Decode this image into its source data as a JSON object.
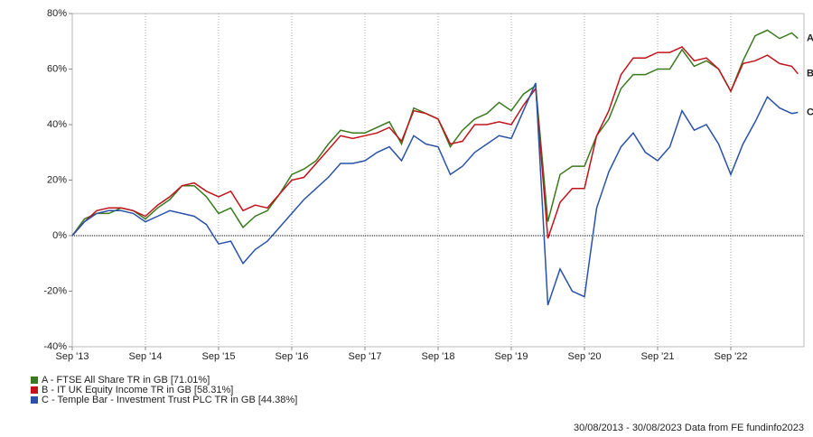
{
  "chart_data": {
    "type": "line",
    "x": [
      "2013-09",
      "2013-11",
      "2014-01",
      "2014-03",
      "2014-05",
      "2014-07",
      "2014-09",
      "2014-11",
      "2015-01",
      "2015-03",
      "2015-05",
      "2015-07",
      "2015-09",
      "2015-11",
      "2016-01",
      "2016-03",
      "2016-05",
      "2016-07",
      "2016-09",
      "2016-11",
      "2017-01",
      "2017-03",
      "2017-05",
      "2017-07",
      "2017-09",
      "2017-11",
      "2018-01",
      "2018-03",
      "2018-05",
      "2018-07",
      "2018-09",
      "2018-11",
      "2019-01",
      "2019-03",
      "2019-05",
      "2019-07",
      "2019-09",
      "2019-11",
      "2020-01",
      "2020-03",
      "2020-05",
      "2020-07",
      "2020-09",
      "2020-11",
      "2021-01",
      "2021-03",
      "2021-05",
      "2021-07",
      "2021-09",
      "2021-11",
      "2022-01",
      "2022-03",
      "2022-05",
      "2022-07",
      "2022-09",
      "2022-11",
      "2023-01",
      "2023-03",
      "2023-05",
      "2023-07",
      "2023-08"
    ],
    "series": [
      {
        "name": "A - FTSE All Share TR in GB [71.01%]",
        "label": "A",
        "color": "#3a7a1f",
        "values": [
          0,
          6,
          8,
          8,
          10,
          9,
          6,
          10,
          13,
          18,
          18,
          14,
          8,
          10,
          3,
          7,
          9,
          15,
          22,
          24,
          27,
          33,
          38,
          37,
          37,
          39,
          41,
          33,
          46,
          44,
          42,
          32,
          38,
          42,
          44,
          48,
          45,
          51,
          54,
          5,
          22,
          25,
          25,
          36,
          42,
          53,
          58,
          58,
          60,
          60,
          67,
          61,
          63,
          60,
          52,
          63,
          72,
          74,
          71,
          73,
          71.01
        ]
      },
      {
        "name": "B - IT UK Equity Income TR in GB [58.31%]",
        "label": "B",
        "color": "#c0141b",
        "values": [
          0,
          5,
          9,
          10,
          10,
          9,
          7,
          11,
          14,
          18,
          19,
          16,
          14,
          16,
          9,
          11,
          10,
          15,
          20,
          21,
          26,
          31,
          36,
          35,
          36,
          37,
          39,
          34,
          45,
          44,
          42,
          33,
          34,
          40,
          40,
          41,
          40,
          47,
          53,
          -1,
          12,
          17,
          17,
          36,
          45,
          58,
          64,
          64,
          66,
          66,
          68,
          63,
          64,
          60,
          52,
          62,
          63,
          65,
          62,
          61,
          58.31
        ]
      },
      {
        "name": "C - Temple Bar - Investment Trust PLC TR in GB [44.38%]",
        "label": "C",
        "color": "#2a52a8",
        "values": [
          0,
          5,
          8,
          9,
          9,
          8,
          5,
          7,
          9,
          8,
          7,
          4,
          -3,
          -2,
          -10,
          -5,
          -2,
          3,
          8,
          13,
          17,
          21,
          26,
          26,
          27,
          30,
          32,
          27,
          36,
          33,
          32,
          22,
          25,
          30,
          33,
          36,
          35,
          45,
          55,
          -25,
          -12,
          -20,
          -22,
          10,
          23,
          32,
          37,
          30,
          27,
          32,
          45,
          38,
          40,
          33,
          22,
          33,
          41,
          50,
          46,
          44,
          44.38
        ]
      }
    ],
    "xlim": [
      "2013-09",
      "2023-09"
    ],
    "xticks": [
      {
        "value": "2013-09",
        "label": "Sep '13"
      },
      {
        "value": "2014-09",
        "label": "Sep '14"
      },
      {
        "value": "2015-09",
        "label": "Sep '15"
      },
      {
        "value": "2016-09",
        "label": "Sep '16"
      },
      {
        "value": "2017-09",
        "label": "Sep '17"
      },
      {
        "value": "2018-09",
        "label": "Sep '18"
      },
      {
        "value": "2019-09",
        "label": "Sep '19"
      },
      {
        "value": "2020-09",
        "label": "Sep '20"
      },
      {
        "value": "2021-09",
        "label": "Sep '21"
      },
      {
        "value": "2022-09",
        "label": "Sep '22"
      }
    ],
    "ylim": [
      -40,
      80
    ],
    "yticks": [
      {
        "value": -40,
        "label": "-40%"
      },
      {
        "value": -20,
        "label": "-20%"
      },
      {
        "value": 0,
        "label": "0%"
      },
      {
        "value": 20,
        "label": "20%"
      },
      {
        "value": 40,
        "label": "40%"
      },
      {
        "value": 60,
        "label": "60%"
      },
      {
        "value": 80,
        "label": "80%"
      }
    ],
    "grid": true,
    "footer": "30/08/2013 - 30/08/2023 Data from FE fundinfo2023"
  }
}
